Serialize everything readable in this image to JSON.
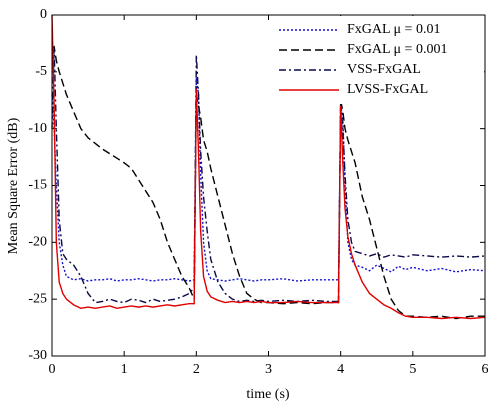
{
  "chart_data": {
    "type": "line",
    "xlabel": "time (s)",
    "ylabel": "Mean Square Error  (dB)",
    "x": [
      0,
      0.03,
      0.06,
      0.1,
      0.15,
      0.2,
      0.3,
      0.4,
      0.5,
      0.6,
      0.7,
      0.8,
      0.9,
      1.0,
      1.1,
      1.2,
      1.3,
      1.4,
      1.5,
      1.6,
      1.7,
      1.8,
      1.9,
      1.97,
      2.0,
      2.03,
      2.06,
      2.1,
      2.15,
      2.2,
      2.3,
      2.4,
      2.5,
      2.6,
      2.7,
      2.8,
      2.9,
      3.0,
      3.2,
      3.4,
      3.6,
      3.8,
      3.97,
      4.0,
      4.03,
      4.06,
      4.1,
      4.15,
      4.2,
      4.3,
      4.4,
      4.5,
      4.6,
      4.7,
      4.8,
      4.9,
      5.0,
      5.2,
      5.4,
      5.6,
      5.8,
      6.0
    ],
    "series": [
      {
        "name": "FxGAL  μ = 0.01",
        "color": "#1010d0",
        "style": "dotted",
        "values": [
          -7,
          -10,
          -15,
          -20,
          -22,
          -23,
          -23.3,
          -23.2,
          -23.4,
          -23.3,
          -23.3,
          -23.2,
          -23.4,
          -23.3,
          -23.3,
          -23.2,
          -23.3,
          -23.4,
          -23.3,
          -23.3,
          -23.2,
          -23.3,
          -23.4,
          -23.3,
          -5.5,
          -7,
          -14,
          -20,
          -22.5,
          -23.2,
          -23.3,
          -23.4,
          -23.3,
          -23.2,
          -23.3,
          -23.4,
          -23.3,
          -23.3,
          -23.2,
          -23.4,
          -23.3,
          -23.3,
          -23.3,
          -8,
          -9,
          -15,
          -20,
          -21.5,
          -22,
          -22.2,
          -22.5,
          -22,
          -22.3,
          -22.6,
          -22.1,
          -22.4,
          -22.2,
          -22.5,
          -22.3,
          -22.6,
          -22.4,
          -22.5
        ]
      },
      {
        "name": "FxGAL  μ = 0.001",
        "color": "#000000",
        "style": "dashed",
        "values": [
          -3,
          -2.8,
          -4,
          -5,
          -6,
          -7,
          -8.5,
          -10,
          -10.8,
          -11.3,
          -11.8,
          -12.2,
          -12.6,
          -13,
          -13.5,
          -14.5,
          -15.5,
          -16.5,
          -18,
          -20,
          -21.5,
          -23,
          -24,
          -25,
          -7,
          -8,
          -9,
          -11,
          -12,
          -13.5,
          -16,
          -18.5,
          -21,
          -23,
          -24.5,
          -25,
          -25.3,
          -25.3,
          -25.4,
          -25.3,
          -25.4,
          -25.3,
          -25.3,
          -7.5,
          -8.5,
          -10,
          -11,
          -12,
          -13,
          -16,
          -18,
          -20.5,
          -23,
          -25,
          -26,
          -26.5,
          -26.5,
          -26.6,
          -26.5,
          -26.7,
          -26.5,
          -26.5
        ]
      },
      {
        "name": "VSS-FxGAL",
        "color": "#0a0a4a",
        "style": "dashdot",
        "values": [
          -10,
          -3,
          -10,
          -18,
          -21,
          -21.5,
          -22,
          -23,
          -24.5,
          -25.3,
          -25.2,
          -25,
          -25.2,
          -25.3,
          -25,
          -25.1,
          -25.3,
          -25,
          -25.2,
          -25.1,
          -25,
          -24.8,
          -24.5,
          -24,
          -3.5,
          -7,
          -12,
          -16,
          -19,
          -21.5,
          -23.5,
          -24.5,
          -25,
          -25.2,
          -25.1,
          -25.2,
          -25.1,
          -25.2,
          -25.1,
          -25.2,
          -25.1,
          -25.2,
          -25.2,
          -7.5,
          -10,
          -14,
          -18,
          -20,
          -20.8,
          -21,
          -21.2,
          -21,
          -21.3,
          -21.1,
          -21.2,
          -21.3,
          -21.1,
          -21.2,
          -21.3,
          -21.2,
          -21.3,
          -21.2
        ]
      },
      {
        "name": "LVSS-FxGAL",
        "color": "#e00000",
        "style": "solid",
        "values": [
          0,
          -8,
          -20,
          -23.5,
          -24.5,
          -25,
          -25.5,
          -25.8,
          -25.7,
          -25.8,
          -25.7,
          -25.6,
          -25.8,
          -25.7,
          -25.6,
          -25.7,
          -25.6,
          -25.7,
          -25.6,
          -25.5,
          -25.6,
          -25.5,
          -25.4,
          -25.4,
          -6.5,
          -12,
          -19,
          -23,
          -24.3,
          -24.8,
          -25.1,
          -25.3,
          -25.2,
          -25.3,
          -25.2,
          -25.3,
          -25.2,
          -25.3,
          -25.3,
          -25.2,
          -25.3,
          -25.3,
          -25.3,
          -8,
          -13,
          -17,
          -19.5,
          -21,
          -22,
          -23.5,
          -24.5,
          -25,
          -25.5,
          -25.8,
          -26.2,
          -26.5,
          -26.6,
          -26.6,
          -26.7,
          -26.6,
          -26.7,
          -26.6
        ]
      }
    ],
    "xlim": [
      0,
      6
    ],
    "ylim": [
      -30,
      0
    ],
    "xticks": [
      0,
      1,
      2,
      3,
      4,
      5,
      6
    ],
    "yticks": [
      -30,
      -25,
      -20,
      -15,
      -10,
      -5,
      0
    ],
    "grid": false,
    "legend": "upper right"
  }
}
